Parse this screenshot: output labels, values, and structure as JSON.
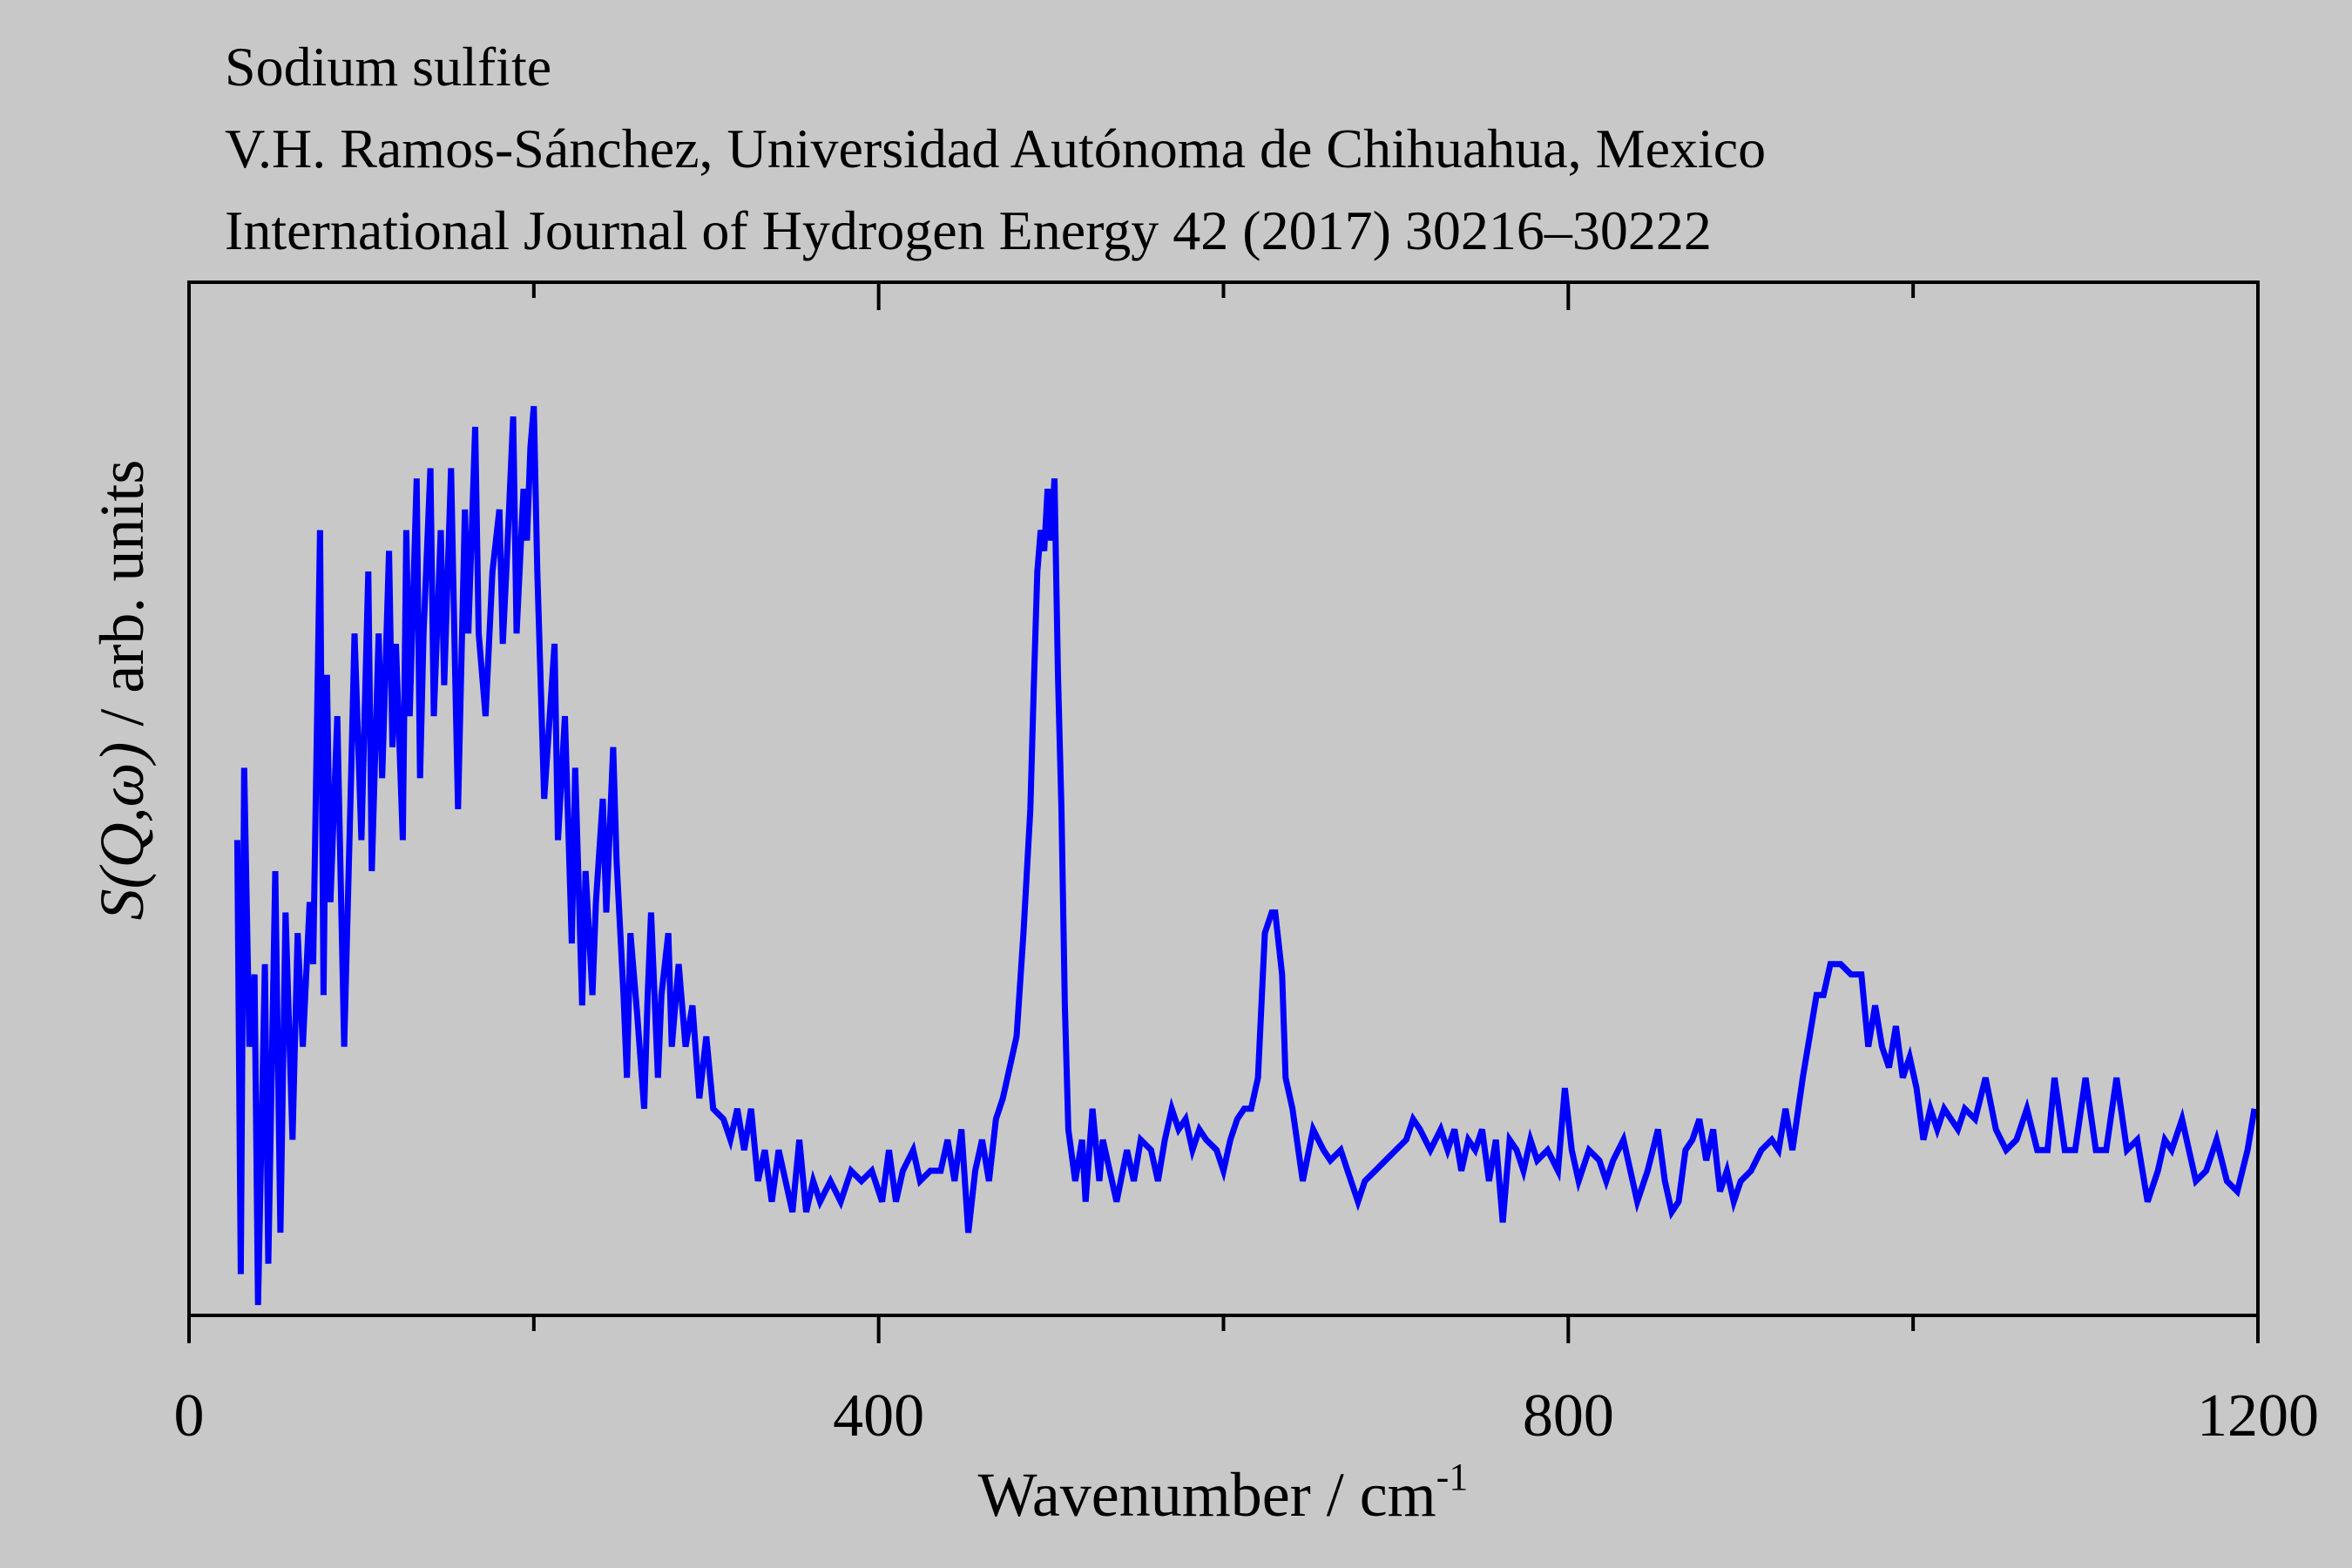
{
  "chart_data": {
    "type": "line",
    "title_lines": [
      "Sodium sulfite",
      "V.H. Ramos-Sánchez, Universidad Autónoma de Chihuahua, Mexico",
      "International Journal of Hydrogen Energy 42 (2017) 30216–30222"
    ],
    "x_label": "Wavenumber / cm",
    "x_label_sup": "-1",
    "y_label_italic": "S(Q,ω)",
    "y_label_rest": " / arb. units",
    "xlim": [
      0,
      1200
    ],
    "xticks": [
      0,
      400,
      800,
      1200
    ],
    "xminor_ticks": [
      200,
      600,
      1000
    ],
    "ylim": [
      0,
      1
    ],
    "x": [
      28,
      30,
      32,
      35,
      38,
      40,
      44,
      46,
      50,
      53,
      56,
      60,
      63,
      66,
      70,
      72,
      76,
      78,
      80,
      82,
      86,
      90,
      94,
      96,
      100,
      104,
      106,
      110,
      112,
      116,
      118,
      120,
      124,
      126,
      128,
      132,
      134,
      136,
      140,
      142,
      146,
      148,
      152,
      154,
      156,
      160,
      162,
      164,
      166,
      168,
      172,
      176,
      180,
      182,
      184,
      188,
      190,
      194,
      196,
      198,
      200,
      202,
      206,
      208,
      212,
      214,
      218,
      222,
      224,
      228,
      230,
      234,
      236,
      240,
      242,
      246,
      248,
      252,
      254,
      256,
      260,
      264,
      266,
      268,
      272,
      274,
      278,
      280,
      284,
      288,
      292,
      296,
      300,
      304,
      310,
      314,
      318,
      322,
      326,
      330,
      334,
      338,
      342,
      346,
      350,
      354,
      358,
      362,
      366,
      372,
      378,
      384,
      390,
      396,
      402,
      406,
      410,
      414,
      420,
      424,
      430,
      436,
      440,
      444,
      448,
      452,
      456,
      460,
      464,
      468,
      472,
      476,
      480,
      484,
      488,
      490,
      492,
      494,
      496,
      498,
      500,
      502,
      504,
      506,
      508,
      510,
      514,
      518,
      520,
      524,
      528,
      530,
      534,
      538,
      544,
      548,
      552,
      558,
      562,
      566,
      570,
      574,
      578,
      582,
      586,
      590,
      596,
      600,
      604,
      608,
      612,
      616,
      620,
      624,
      628,
      630,
      634,
      636,
      640,
      646,
      652,
      658,
      662,
      668,
      672,
      678,
      682,
      688,
      694,
      700,
      706,
      710,
      714,
      720,
      726,
      730,
      734,
      738,
      742,
      746,
      750,
      754,
      758,
      762,
      766,
      770,
      774,
      778,
      782,
      788,
      794,
      798,
      802,
      806,
      812,
      818,
      822,
      826,
      832,
      836,
      840,
      846,
      852,
      856,
      860,
      864,
      868,
      872,
      876,
      880,
      884,
      888,
      892,
      896,
      900,
      906,
      912,
      918,
      922,
      926,
      930,
      936,
      940,
      944,
      948,
      952,
      958,
      964,
      970,
      974,
      978,
      982,
      986,
      990,
      994,
      998,
      1002,
      1006,
      1010,
      1014,
      1018,
      1022,
      1026,
      1030,
      1036,
      1042,
      1048,
      1054,
      1060,
      1066,
      1072,
      1078,
      1082,
      1088,
      1094,
      1100,
      1106,
      1112,
      1118,
      1124,
      1130,
      1136,
      1142,
      1146,
      1150,
      1156,
      1160,
      1164,
      1170,
      1176,
      1182,
      1188,
      1194,
      1198
    ],
    "series": [
      {
        "name": "Sodium sulfite",
        "color": "#0000ff",
        "values": [
          0.46,
          0.04,
          0.53,
          0.26,
          0.33,
          0.01,
          0.34,
          0.05,
          0.43,
          0.08,
          0.39,
          0.17,
          0.37,
          0.26,
          0.4,
          0.34,
          0.76,
          0.31,
          0.62,
          0.4,
          0.58,
          0.26,
          0.52,
          0.66,
          0.46,
          0.72,
          0.43,
          0.66,
          0.52,
          0.74,
          0.55,
          0.65,
          0.46,
          0.76,
          0.58,
          0.81,
          0.52,
          0.66,
          0.82,
          0.58,
          0.76,
          0.61,
          0.82,
          0.65,
          0.49,
          0.78,
          0.66,
          0.76,
          0.86,
          0.66,
          0.58,
          0.72,
          0.78,
          0.65,
          0.72,
          0.87,
          0.66,
          0.8,
          0.75,
          0.84,
          0.88,
          0.72,
          0.5,
          0.55,
          0.65,
          0.46,
          0.58,
          0.36,
          0.53,
          0.3,
          0.43,
          0.31,
          0.4,
          0.5,
          0.39,
          0.55,
          0.44,
          0.31,
          0.23,
          0.37,
          0.29,
          0.2,
          0.31,
          0.39,
          0.23,
          0.31,
          0.37,
          0.26,
          0.34,
          0.26,
          0.3,
          0.21,
          0.27,
          0.2,
          0.19,
          0.17,
          0.2,
          0.16,
          0.2,
          0.13,
          0.16,
          0.11,
          0.16,
          0.13,
          0.1,
          0.17,
          0.1,
          0.13,
          0.11,
          0.13,
          0.11,
          0.14,
          0.13,
          0.14,
          0.11,
          0.16,
          0.11,
          0.14,
          0.16,
          0.13,
          0.14,
          0.14,
          0.17,
          0.13,
          0.18,
          0.08,
          0.14,
          0.17,
          0.13,
          0.19,
          0.21,
          0.24,
          0.27,
          0.37,
          0.49,
          0.61,
          0.72,
          0.76,
          0.74,
          0.8,
          0.75,
          0.81,
          0.62,
          0.49,
          0.3,
          0.18,
          0.13,
          0.17,
          0.11,
          0.2,
          0.13,
          0.17,
          0.14,
          0.11,
          0.16,
          0.13,
          0.17,
          0.16,
          0.13,
          0.17,
          0.2,
          0.18,
          0.19,
          0.16,
          0.18,
          0.17,
          0.16,
          0.14,
          0.17,
          0.19,
          0.2,
          0.2,
          0.23,
          0.37,
          0.39,
          0.39,
          0.33,
          0.23,
          0.2,
          0.13,
          0.18,
          0.16,
          0.15,
          0.16,
          0.14,
          0.11,
          0.13,
          0.14,
          0.15,
          0.16,
          0.17,
          0.19,
          0.18,
          0.16,
          0.18,
          0.16,
          0.18,
          0.14,
          0.17,
          0.16,
          0.18,
          0.13,
          0.17,
          0.09,
          0.17,
          0.16,
          0.14,
          0.17,
          0.15,
          0.16,
          0.14,
          0.22,
          0.16,
          0.13,
          0.16,
          0.15,
          0.13,
          0.15,
          0.17,
          0.14,
          0.11,
          0.14,
          0.18,
          0.13,
          0.1,
          0.11,
          0.16,
          0.17,
          0.19,
          0.15,
          0.18,
          0.12,
          0.14,
          0.11,
          0.13,
          0.14,
          0.16,
          0.17,
          0.16,
          0.2,
          0.16,
          0.23,
          0.27,
          0.31,
          0.31,
          0.34,
          0.34,
          0.33,
          0.33,
          0.26,
          0.3,
          0.26,
          0.24,
          0.28,
          0.23,
          0.25,
          0.22,
          0.17,
          0.2,
          0.18,
          0.2,
          0.19,
          0.18,
          0.2,
          0.19,
          0.23,
          0.18,
          0.16,
          0.17,
          0.2,
          0.16,
          0.16,
          0.23,
          0.16,
          0.16,
          0.23,
          0.16,
          0.16,
          0.23,
          0.16,
          0.17,
          0.11,
          0.14,
          0.17,
          0.16,
          0.19,
          0.16,
          0.13,
          0.14,
          0.17,
          0.13,
          0.12,
          0.16,
          0.2
        ]
      }
    ]
  }
}
